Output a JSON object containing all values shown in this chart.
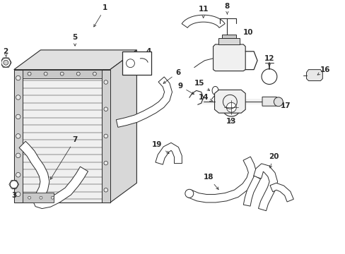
{
  "bg_color": "#ffffff",
  "lc": "#2a2a2a",
  "figsize": [
    4.89,
    3.6
  ],
  "dpi": 100,
  "xlim": [
    0,
    4.89
  ],
  "ylim": [
    0,
    3.6
  ]
}
